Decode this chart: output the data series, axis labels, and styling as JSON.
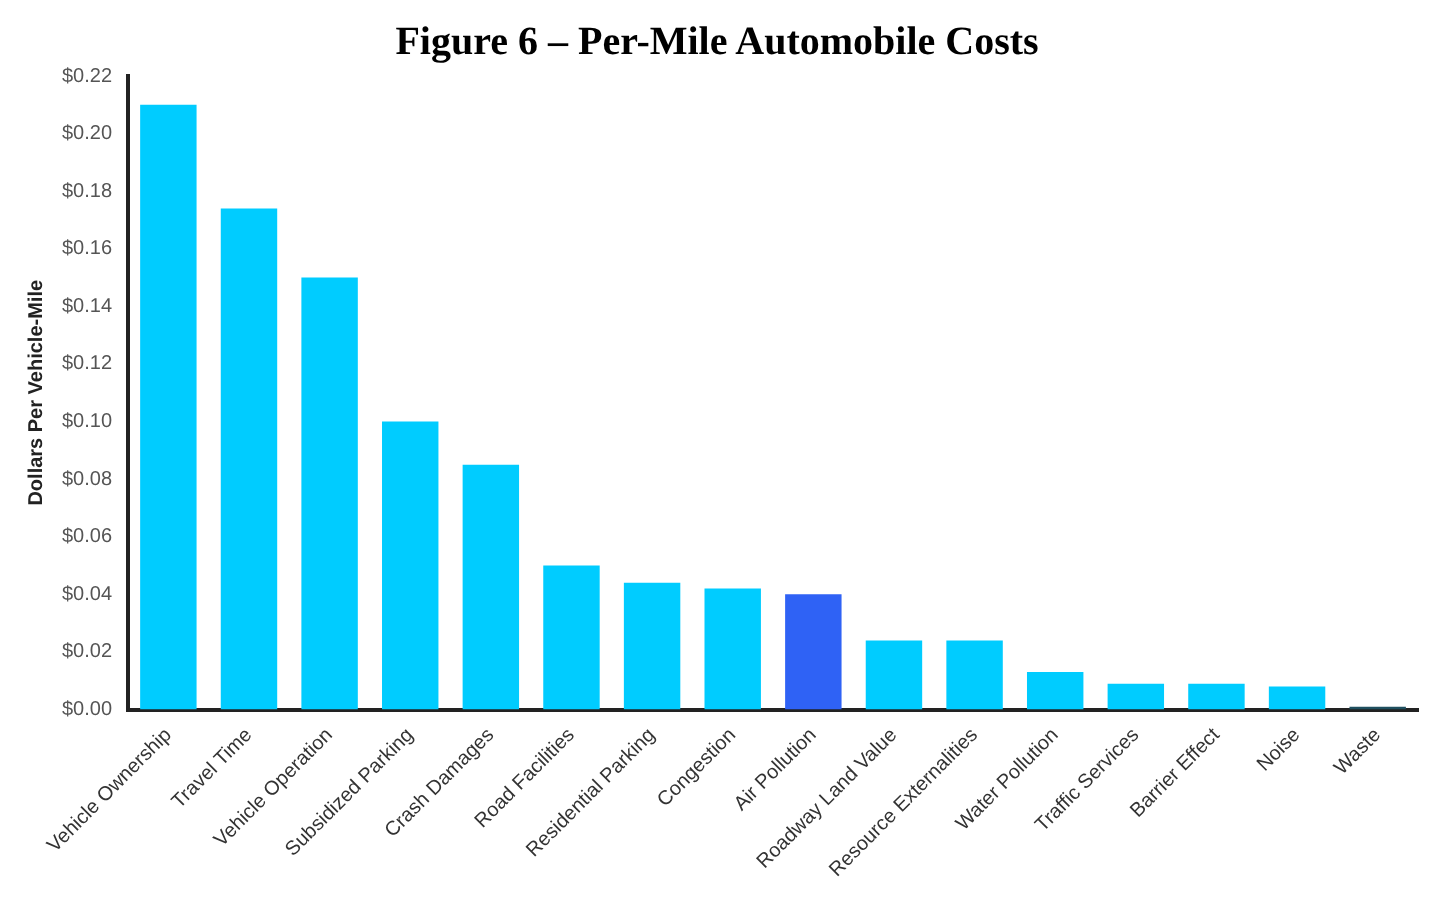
{
  "chart_data": {
    "type": "bar",
    "title": "Figure 6 – Per-Mile Automobile Costs",
    "ylabel": "Dollars Per Vehicle-Mile",
    "categories": [
      "Vehicle Ownership",
      "Travel Time",
      "Vehicle Operation",
      "Subsidized Parking",
      "Crash Damages",
      "Road Facilities",
      "Residential Parking",
      "Congestion",
      "Air Pollution",
      "Roadway Land Value",
      "Resource Externalities",
      "Water Pollution",
      "Traffic Services",
      "Barrier Effect",
      "Noise",
      "Waste"
    ],
    "values": [
      0.21,
      0.174,
      0.15,
      0.1,
      0.085,
      0.05,
      0.044,
      0.042,
      0.04,
      0.024,
      0.024,
      0.013,
      0.009,
      0.009,
      0.008,
      0.001
    ],
    "colors": [
      "#00ccff",
      "#00ccff",
      "#00ccff",
      "#00ccff",
      "#00ccff",
      "#00ccff",
      "#00ccff",
      "#00ccff",
      "#2f62f5",
      "#00ccff",
      "#00ccff",
      "#00ccff",
      "#00ccff",
      "#00ccff",
      "#00ccff",
      "#1f4f5f"
    ],
    "ylim": [
      0,
      0.22
    ],
    "yticks": [
      {
        "value": 0,
        "label": "$0.00"
      },
      {
        "value": 0.02,
        "label": "$0.02"
      },
      {
        "value": 0.04,
        "label": "$0.04"
      },
      {
        "value": 0.06,
        "label": "$0.06"
      },
      {
        "value": 0.08,
        "label": "$0.08"
      },
      {
        "value": 0.1,
        "label": "$0.10"
      },
      {
        "value": 0.12,
        "label": "$0.12"
      },
      {
        "value": 0.14,
        "label": "$0.14"
      },
      {
        "value": 0.16,
        "label": "$0.16"
      },
      {
        "value": 0.18,
        "label": "$0.18"
      },
      {
        "value": 0.2,
        "label": "$0.20"
      },
      {
        "value": 0.22,
        "label": "$0.22"
      }
    ],
    "grid": false,
    "legend": false
  }
}
